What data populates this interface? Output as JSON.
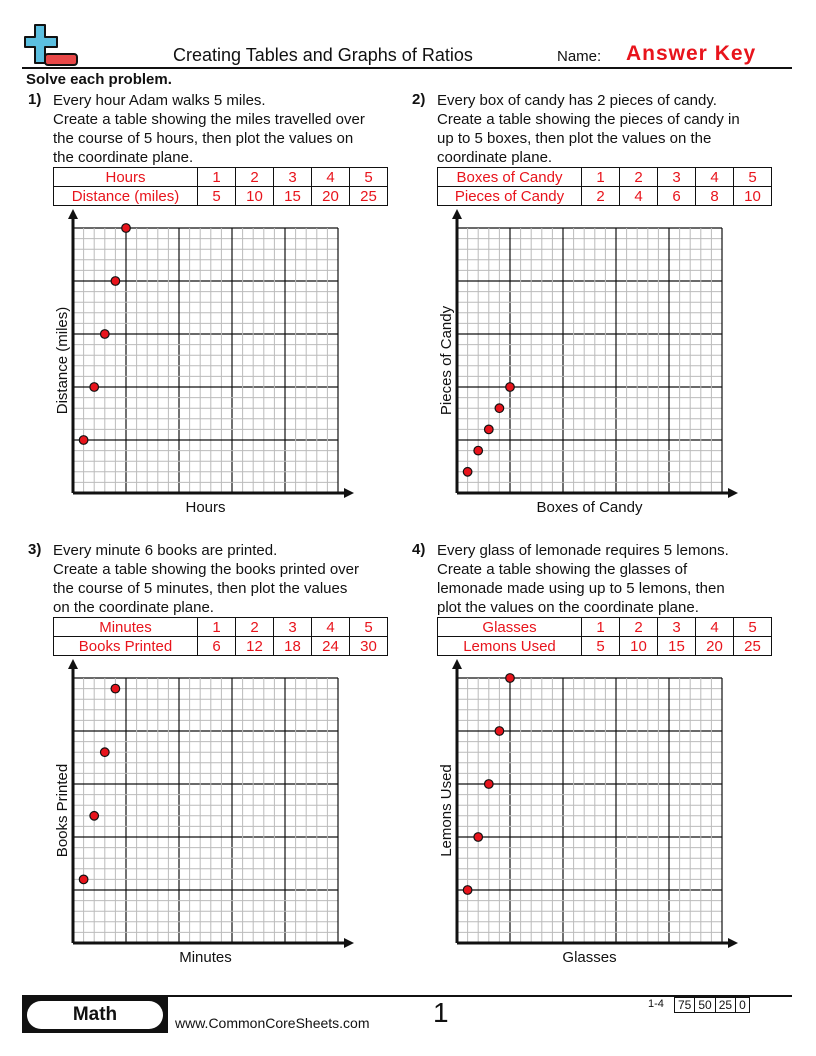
{
  "header": {
    "title": "Creating Tables and Graphs of Ratios",
    "name_label": "Name:",
    "name_value": "Answer Key",
    "logo_icon": "plus-minus-logo-icon"
  },
  "instructions": "Solve each problem.",
  "colors": {
    "answer": "#e8141c",
    "logo_blue": "#5bbfe0",
    "logo_red": "#e84848"
  },
  "problems": [
    {
      "number": "1)",
      "lines": [
        "Every hour Adam walks 5 miles.",
        "Create a table showing the miles travelled over",
        "the course of 5 hours, then plot the values on",
        "the coordinate plane."
      ],
      "table": {
        "row1_label": "Hours",
        "row1": [
          "1",
          "2",
          "3",
          "4",
          "5"
        ],
        "row2_label": "Distance (miles)",
        "row2": [
          "5",
          "10",
          "15",
          "20",
          "25"
        ]
      },
      "chart_data": {
        "type": "scatter",
        "xlabel": "Hours",
        "ylabel": "Distance (miles)",
        "xlim": [
          0,
          25
        ],
        "ylim": [
          0,
          25
        ],
        "grid": true,
        "x": [
          1,
          2,
          3,
          4,
          5
        ],
        "y": [
          5,
          10,
          15,
          20,
          25
        ]
      }
    },
    {
      "number": "2)",
      "lines": [
        "Every box of candy has 2 pieces of candy.",
        "Create a table showing the pieces of candy in",
        "up to 5 boxes, then plot the values on the",
        "coordinate plane."
      ],
      "table": {
        "row1_label": "Boxes of Candy",
        "row1": [
          "1",
          "2",
          "3",
          "4",
          "5"
        ],
        "row2_label": "Pieces of Candy",
        "row2": [
          "2",
          "4",
          "6",
          "8",
          "10"
        ]
      },
      "chart_data": {
        "type": "scatter",
        "xlabel": "Boxes of Candy",
        "ylabel": "Pieces of Candy",
        "xlim": [
          0,
          25
        ],
        "ylim": [
          0,
          25
        ],
        "grid": true,
        "x": [
          1,
          2,
          3,
          4,
          5
        ],
        "y": [
          2,
          4,
          6,
          8,
          10
        ]
      }
    },
    {
      "number": "3)",
      "lines": [
        "Every minute 6 books are printed.",
        "Create a table showing the books printed over",
        "the course of 5 minutes, then plot the values",
        "on the coordinate plane."
      ],
      "table": {
        "row1_label": "Minutes",
        "row1": [
          "1",
          "2",
          "3",
          "4",
          "5"
        ],
        "row2_label": "Books Printed",
        "row2": [
          "6",
          "12",
          "18",
          "24",
          "30"
        ]
      },
      "chart_data": {
        "type": "scatter",
        "xlabel": "Minutes",
        "ylabel": "Books Printed",
        "xlim": [
          0,
          25
        ],
        "ylim": [
          0,
          25
        ],
        "grid": true,
        "x": [
          1,
          2,
          3,
          4
        ],
        "y": [
          6,
          12,
          18,
          24
        ]
      }
    },
    {
      "number": "4)",
      "lines": [
        "Every glass of lemonade requires 5 lemons.",
        "Create a table showing the glasses of",
        "lemonade made using up to 5 lemons, then",
        "plot the values on the coordinate plane."
      ],
      "table": {
        "row1_label": "Glasses",
        "row1": [
          "1",
          "2",
          "3",
          "4",
          "5"
        ],
        "row2_label": "Lemons Used",
        "row2": [
          "5",
          "10",
          "15",
          "20",
          "25"
        ]
      },
      "chart_data": {
        "type": "scatter",
        "xlabel": "Glasses",
        "ylabel": "Lemons Used",
        "xlim": [
          0,
          25
        ],
        "ylim": [
          0,
          25
        ],
        "grid": true,
        "x": [
          1,
          2,
          3,
          4,
          5
        ],
        "y": [
          5,
          10,
          15,
          20,
          25
        ]
      }
    }
  ],
  "footer": {
    "subject": "Math",
    "website": "www.CommonCoreSheets.com",
    "page": "1",
    "range": "1-4",
    "scores": [
      "75",
      "50",
      "25",
      "0"
    ]
  }
}
